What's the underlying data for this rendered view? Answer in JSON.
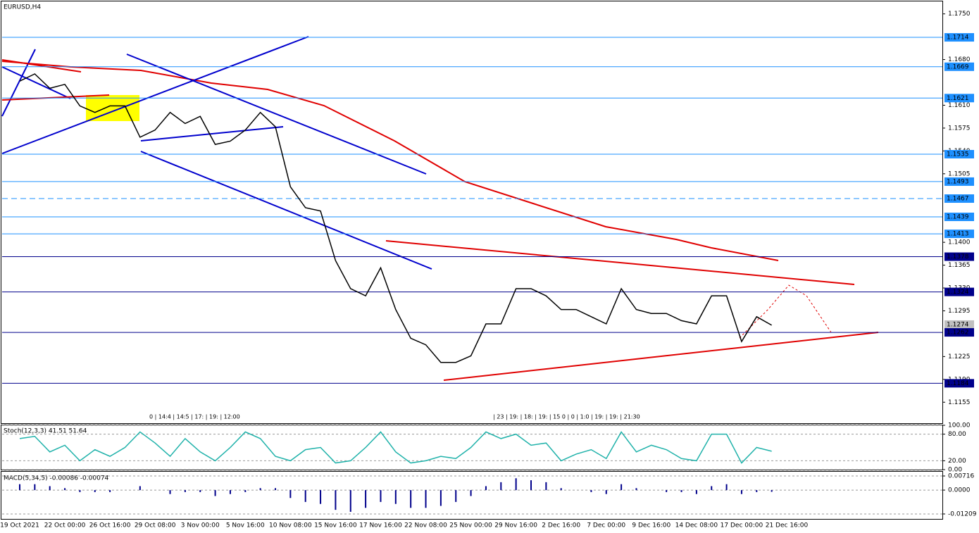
{
  "chart_data": [
    {
      "type": "line",
      "title": "EURUSD,H4",
      "color": "#000000",
      "categories": [
        "19 Oct 2021",
        null,
        null,
        "22 Oct 00:00",
        null,
        null,
        "26 Oct 16:00",
        null,
        null,
        "29 Oct 08:00",
        null,
        null,
        "3 Nov 00:00",
        null,
        null,
        "5 Nov 16:00",
        null,
        null,
        "10 Nov 08:00",
        null,
        null,
        "15 Nov 16:00",
        null,
        null,
        "17 Nov 16:00",
        null,
        null,
        "22 Nov 08:00",
        null,
        null,
        "25 Nov 00:00",
        null,
        null,
        "29 Nov 16:00",
        null,
        null,
        "2 Dec 16:00",
        null,
        null,
        "7 Dec 00:00",
        null,
        null,
        "9 Dec 16:00",
        null,
        null,
        "14 Dec 08:00",
        null,
        null,
        "17 Dec 00:00",
        null,
        null,
        "21 Dec 16:00"
      ],
      "values": [
        1.1647,
        1.1658,
        1.1636,
        1.1642,
        1.1609,
        1.1599,
        1.1609,
        1.1609,
        1.1561,
        1.1572,
        1.1599,
        1.1582,
        1.1593,
        1.155,
        1.1555,
        1.1572,
        1.1599,
        1.1577,
        1.1485,
        1.1453,
        1.1448,
        1.1372,
        1.1329,
        1.1318,
        1.1361,
        1.1297,
        1.1253,
        1.1243,
        1.1216,
        1.1216,
        1.1226,
        1.1275,
        1.1275,
        1.1329,
        1.1329,
        1.1318,
        1.1297,
        1.1297,
        1.1286,
        1.1275,
        1.1329,
        1.1297,
        1.1291,
        1.1291,
        1.128,
        1.1275,
        1.1318,
        1.1318,
        1.1248,
        1.1286,
        1.1273,
        null
      ],
      "ylim": [
        1.1124,
        1.1768
      ],
      "yticks": [
        {
          "value": 1.175,
          "label": "1.1750"
        },
        {
          "value": 1.168,
          "label": "1.1680"
        },
        {
          "value": 1.161,
          "label": "1.1610"
        },
        1.1575,
        {
          "value": 1.154,
          "label": "1.1540"
        },
        1.1505,
        {
          "value": 1.14,
          "label": "1.1400"
        },
        1.1365,
        {
          "value": 1.133,
          "label": "1.1330"
        },
        1.1295,
        1.1225,
        {
          "value": 1.119,
          "label": "1.1190"
        },
        1.1155
      ],
      "levels": [
        {
          "value": 1.1714,
          "color": "#1e90ff",
          "style": "solid"
        },
        {
          "value": 1.1669,
          "color": "#1e90ff",
          "style": "solid"
        },
        {
          "value": 1.1621,
          "color": "#1e90ff",
          "style": "solid"
        },
        {
          "value": 1.1535,
          "color": "#1e90ff",
          "style": "solid"
        },
        {
          "value": 1.1493,
          "color": "#1e90ff",
          "style": "solid"
        },
        {
          "value": 1.1467,
          "color": "#1e90ff",
          "style": "dashed"
        },
        {
          "value": 1.1439,
          "color": "#1e90ff",
          "style": "solid"
        },
        {
          "value": 1.1413,
          "color": "#1e90ff",
          "style": "solid"
        },
        {
          "value": 1.1378,
          "color": "#00008b",
          "style": "solid"
        },
        {
          "value": 1.1324,
          "color": "#00008b",
          "style": "solid"
        },
        {
          "value": 1.1274,
          "color": "#c0c0c0",
          "style": "none"
        },
        {
          "value": 1.1262,
          "color": "#00008b",
          "style": "solid"
        },
        {
          "value": 1.1184,
          "color": "#00008b",
          "style": "solid"
        }
      ],
      "time_marks": [
        "0 | 14:4 | 14:5 | 17: | 19: | 12:00",
        "| 23 | 19: | 18: | 19: | 15 0 | 0 | 1:0 | 19: | 19: | 21:30"
      ]
    },
    {
      "type": "line",
      "title": "Stoch(12,3,3) 41.51 51.64",
      "color": "#20b2aa",
      "values": [
        70,
        75,
        40,
        55,
        20,
        45,
        30,
        50,
        85,
        60,
        30,
        70,
        40,
        20,
        50,
        85,
        70,
        30,
        20,
        45,
        50,
        15,
        20,
        50,
        85,
        40,
        15,
        20,
        30,
        25,
        50,
        85,
        70,
        80,
        55,
        60,
        20,
        35,
        45,
        25,
        85,
        40,
        55,
        45,
        25,
        20,
        80,
        80,
        15,
        50,
        41.51
      ],
      "ylim": [
        0,
        100
      ],
      "yticks": [
        {
          "value": 100,
          "label": "100.00"
        },
        {
          "value": 80,
          "label": "80.00"
        },
        {
          "value": 20,
          "label": "20.00"
        },
        {
          "value": 0,
          "label": "0.00"
        }
      ]
    },
    {
      "type": "bar",
      "title": "MACD(5,34,5) -0.00086 -0.00074",
      "color": "#00008b",
      "values": [
        0.003,
        0.003,
        0.002,
        0.001,
        -0.001,
        -0.001,
        -0.001,
        0,
        0.002,
        0,
        -0.002,
        -0.001,
        -0.001,
        -0.003,
        -0.002,
        -0.001,
        0.001,
        0.001,
        -0.004,
        -0.006,
        -0.007,
        -0.01,
        -0.011,
        -0.009,
        -0.006,
        -0.007,
        -0.009,
        -0.009,
        -0.008,
        -0.006,
        -0.003,
        0.002,
        0.004,
        0.006,
        0.005,
        0.004,
        0.001,
        0,
        -0.001,
        -0.002,
        0.003,
        0.001,
        0,
        -0.001,
        -0.001,
        -0.002,
        0.002,
        0.003,
        -0.002,
        -0.001,
        -0.00086
      ],
      "ylim": [
        -0.0146,
        0.0093
      ],
      "yticks": [
        0.00716,
        {
          "value": 0,
          "label": "0.0000"
        },
        -0.01209
      ]
    }
  ]
}
